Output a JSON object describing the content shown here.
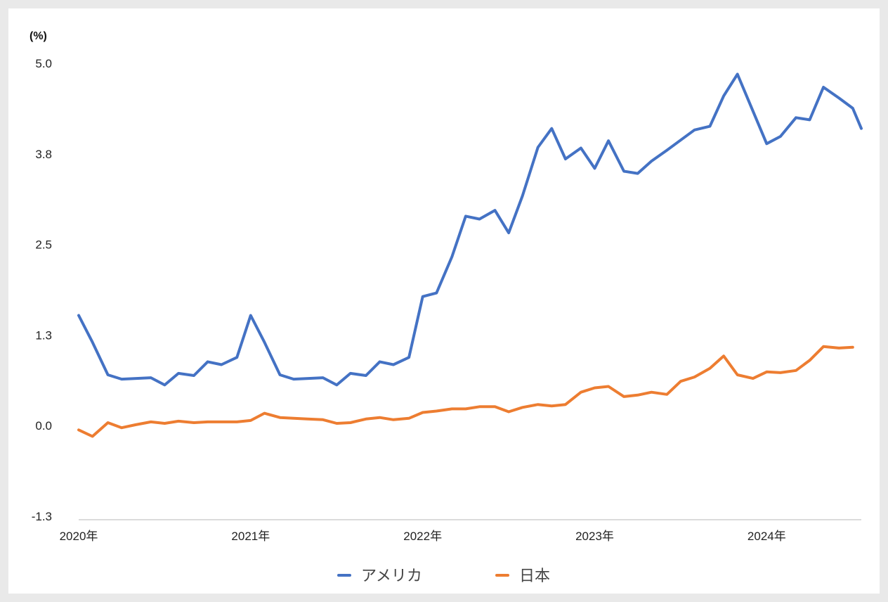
{
  "chart_data": {
    "type": "line",
    "unit_label": "(%)",
    "ylim": [
      -1.3,
      5.0
    ],
    "y_ticks": [
      "5.0",
      "3.8",
      "2.5",
      "1.3",
      "0.0",
      "-1.3"
    ],
    "y_tick_values": [
      5.0,
      3.75,
      2.5,
      1.25,
      0.0,
      -1.25
    ],
    "xlim": [
      2020.0,
      2024.55
    ],
    "x_ticks": [
      "2020年",
      "2021年",
      "2022年",
      "2023年",
      "2024年"
    ],
    "x_tick_values": [
      2020,
      2021,
      2022,
      2023,
      2024
    ],
    "legend_position": "bottom",
    "series": [
      {
        "name": "アメリカ",
        "color": "#4472c4",
        "points": [
          [
            2020.0,
            1.52
          ],
          [
            2020.08,
            1.15
          ],
          [
            2020.17,
            0.7
          ],
          [
            2020.25,
            0.64
          ],
          [
            2020.42,
            0.66
          ],
          [
            2020.5,
            0.56
          ],
          [
            2020.58,
            0.72
          ],
          [
            2020.67,
            0.69
          ],
          [
            2020.75,
            0.88
          ],
          [
            2020.83,
            0.84
          ],
          [
            2020.92,
            0.94
          ],
          [
            2021.0,
            1.52
          ],
          [
            2021.08,
            1.15
          ],
          [
            2021.17,
            0.7
          ],
          [
            2021.25,
            0.64
          ],
          [
            2021.42,
            0.66
          ],
          [
            2021.5,
            0.56
          ],
          [
            2021.58,
            0.72
          ],
          [
            2021.67,
            0.69
          ],
          [
            2021.75,
            0.88
          ],
          [
            2021.83,
            0.84
          ],
          [
            2021.92,
            0.94
          ],
          [
            2022.0,
            1.78
          ],
          [
            2022.08,
            1.83
          ],
          [
            2022.17,
            2.33
          ],
          [
            2022.25,
            2.89
          ],
          [
            2022.33,
            2.85
          ],
          [
            2022.42,
            2.97
          ],
          [
            2022.5,
            2.66
          ],
          [
            2022.58,
            3.17
          ],
          [
            2022.67,
            3.84
          ],
          [
            2022.75,
            4.1
          ],
          [
            2022.83,
            3.68
          ],
          [
            2022.92,
            3.83
          ],
          [
            2023.0,
            3.55
          ],
          [
            2023.08,
            3.93
          ],
          [
            2023.17,
            3.51
          ],
          [
            2023.25,
            3.48
          ],
          [
            2023.33,
            3.65
          ],
          [
            2023.42,
            3.8
          ],
          [
            2023.5,
            3.94
          ],
          [
            2023.58,
            4.08
          ],
          [
            2023.67,
            4.13
          ],
          [
            2023.75,
            4.55
          ],
          [
            2023.83,
            4.85
          ],
          [
            2024.0,
            3.89
          ],
          [
            2024.08,
            3.99
          ],
          [
            2024.17,
            4.25
          ],
          [
            2024.25,
            4.22
          ],
          [
            2024.33,
            4.67
          ],
          [
            2024.42,
            4.52
          ],
          [
            2024.5,
            4.38
          ],
          [
            2024.55,
            4.1
          ]
        ]
      },
      {
        "name": "日本",
        "color": "#ed7d31",
        "points": [
          [
            2020.0,
            -0.06
          ],
          [
            2020.08,
            -0.15
          ],
          [
            2020.17,
            0.04
          ],
          [
            2020.25,
            -0.03
          ],
          [
            2020.33,
            0.01
          ],
          [
            2020.42,
            0.05
          ],
          [
            2020.5,
            0.03
          ],
          [
            2020.58,
            0.06
          ],
          [
            2020.67,
            0.04
          ],
          [
            2020.75,
            0.05
          ],
          [
            2020.83,
            0.05
          ],
          [
            2020.92,
            0.05
          ],
          [
            2021.0,
            0.07
          ],
          [
            2021.08,
            0.17
          ],
          [
            2021.17,
            0.11
          ],
          [
            2021.25,
            0.1
          ],
          [
            2021.33,
            0.09
          ],
          [
            2021.42,
            0.08
          ],
          [
            2021.5,
            0.03
          ],
          [
            2021.58,
            0.04
          ],
          [
            2021.67,
            0.09
          ],
          [
            2021.75,
            0.11
          ],
          [
            2021.83,
            0.08
          ],
          [
            2021.92,
            0.1
          ],
          [
            2022.0,
            0.18
          ],
          [
            2022.08,
            0.2
          ],
          [
            2022.17,
            0.23
          ],
          [
            2022.25,
            0.23
          ],
          [
            2022.33,
            0.26
          ],
          [
            2022.42,
            0.26
          ],
          [
            2022.5,
            0.19
          ],
          [
            2022.58,
            0.25
          ],
          [
            2022.67,
            0.29
          ],
          [
            2022.75,
            0.27
          ],
          [
            2022.83,
            0.29
          ],
          [
            2022.92,
            0.46
          ],
          [
            2023.0,
            0.52
          ],
          [
            2023.08,
            0.54
          ],
          [
            2023.17,
            0.4
          ],
          [
            2023.25,
            0.42
          ],
          [
            2023.33,
            0.46
          ],
          [
            2023.42,
            0.43
          ],
          [
            2023.5,
            0.61
          ],
          [
            2023.58,
            0.67
          ],
          [
            2023.67,
            0.79
          ],
          [
            2023.75,
            0.96
          ],
          [
            2023.83,
            0.7
          ],
          [
            2023.92,
            0.65
          ],
          [
            2024.0,
            0.74
          ],
          [
            2024.08,
            0.73
          ],
          [
            2024.17,
            0.76
          ],
          [
            2024.25,
            0.9
          ],
          [
            2024.33,
            1.09
          ],
          [
            2024.42,
            1.07
          ],
          [
            2024.5,
            1.08
          ]
        ]
      }
    ]
  }
}
